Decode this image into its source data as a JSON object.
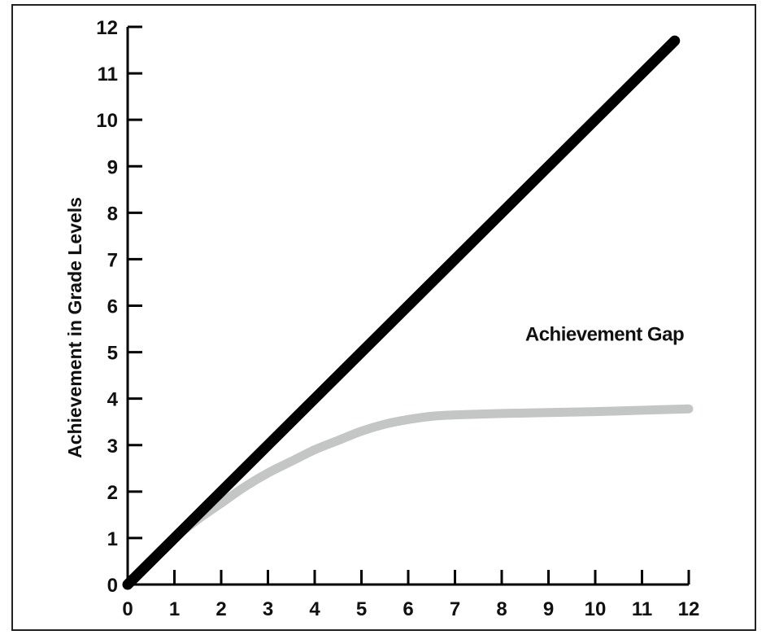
{
  "chart_data": {
    "type": "line",
    "title": "",
    "xlabel": "",
    "ylabel": "Achievement in Grade Levels",
    "xlim": [
      0,
      12
    ],
    "ylim": [
      0,
      12
    ],
    "x_ticks": [
      0,
      1,
      2,
      3,
      4,
      5,
      6,
      7,
      8,
      9,
      10,
      11,
      12
    ],
    "y_ticks": [
      0,
      1,
      2,
      3,
      4,
      5,
      6,
      7,
      8,
      9,
      10,
      11,
      12
    ],
    "grid": false,
    "series": [
      {
        "color": "#000000",
        "x": [
          0,
          11.7
        ],
        "y": [
          0,
          11.7
        ]
      },
      {
        "color": "#c4c6c6",
        "x": [
          0,
          0.5,
          1,
          1.5,
          2,
          2.5,
          3,
          3.5,
          4,
          4.5,
          5,
          5.5,
          6,
          6.5,
          7,
          8,
          9,
          10,
          11,
          12
        ],
        "y": [
          0,
          0.5,
          1.0,
          1.4,
          1.75,
          2.1,
          2.4,
          2.65,
          2.9,
          3.1,
          3.3,
          3.45,
          3.55,
          3.62,
          3.65,
          3.68,
          3.7,
          3.72,
          3.75,
          3.78
        ]
      }
    ],
    "annotations": [
      {
        "text": "Achievement Gap",
        "x": 10.2,
        "y": 5.25
      }
    ]
  }
}
